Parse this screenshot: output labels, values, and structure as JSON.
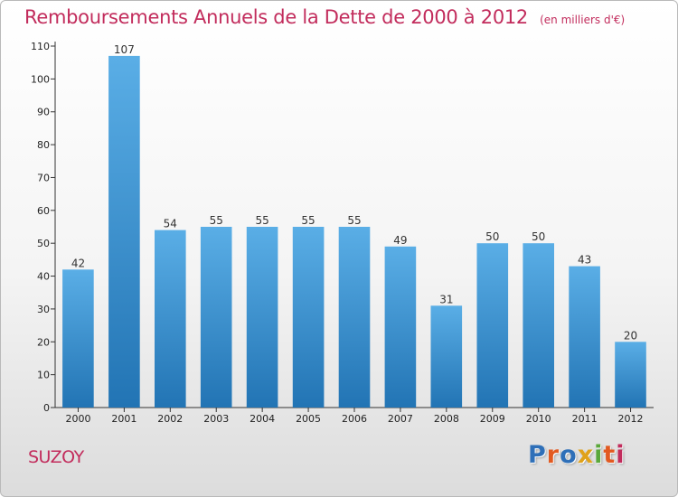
{
  "header": {
    "title": "Remboursements Annuels de la Dette de 2000 à 2012",
    "subtitle": "(en milliers d'€)"
  },
  "footer": {
    "commune": "SUZOY",
    "logo": "Proxiti"
  },
  "colors": {
    "title": "#c22c5c",
    "bar_light": "#5aaee6",
    "bar_dark": "#2274b4",
    "logo_letters": [
      "#2e6fb8",
      "#e25a21",
      "#2e6fb8",
      "#e0a21a",
      "#5aa83a",
      "#e25a21",
      "#c22c5c"
    ]
  },
  "chart_data": {
    "type": "bar",
    "categories": [
      "2000",
      "2001",
      "2002",
      "2003",
      "2004",
      "2005",
      "2006",
      "2007",
      "2008",
      "2009",
      "2010",
      "2011",
      "2012"
    ],
    "values": [
      42,
      107,
      54,
      55,
      55,
      55,
      55,
      49,
      31,
      50,
      50,
      43,
      20
    ],
    "ylim": [
      0,
      110
    ],
    "yticks": [
      0,
      10,
      20,
      30,
      40,
      50,
      60,
      70,
      80,
      90,
      100,
      110
    ],
    "grid": false,
    "data_labels": true,
    "title": "Remboursements Annuels de la Dette de 2000 à 2012",
    "xlabel": "",
    "ylabel": ""
  }
}
